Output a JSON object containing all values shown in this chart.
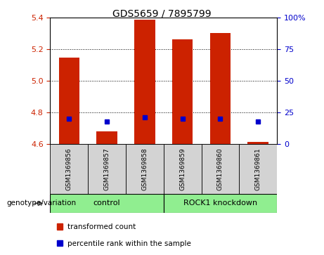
{
  "title": "GDS5659 / 7895799",
  "samples": [
    "GSM1369856",
    "GSM1369857",
    "GSM1369858",
    "GSM1369859",
    "GSM1369860",
    "GSM1369861"
  ],
  "transformed_counts": [
    5.15,
    4.68,
    5.39,
    5.265,
    5.305,
    4.615
  ],
  "percentile_ranks": [
    20,
    18,
    21,
    20,
    20,
    18
  ],
  "ylim_left": [
    4.6,
    5.4
  ],
  "yticks_left": [
    4.6,
    4.8,
    5.0,
    5.2,
    5.4
  ],
  "ylim_right": [
    0,
    100
  ],
  "yticks_right": [
    0,
    25,
    50,
    75,
    100
  ],
  "groups": [
    {
      "label": "control",
      "n": 3,
      "color": "#90EE90"
    },
    {
      "label": "ROCK1 knockdown",
      "n": 3,
      "color": "#90EE90"
    }
  ],
  "bar_color": "#CC2200",
  "marker_color": "#0000CC",
  "bar_width": 0.55,
  "base_value": 4.6,
  "genotype_label": "genotype/variation",
  "legend_items": [
    {
      "color": "#CC2200",
      "label": "transformed count"
    },
    {
      "color": "#0000CC",
      "label": "percentile rank within the sample"
    }
  ],
  "tick_color_left": "#CC2200",
  "tick_color_right": "#0000CC",
  "bg_color": "#D3D3D3",
  "green_color": "#90EE90"
}
